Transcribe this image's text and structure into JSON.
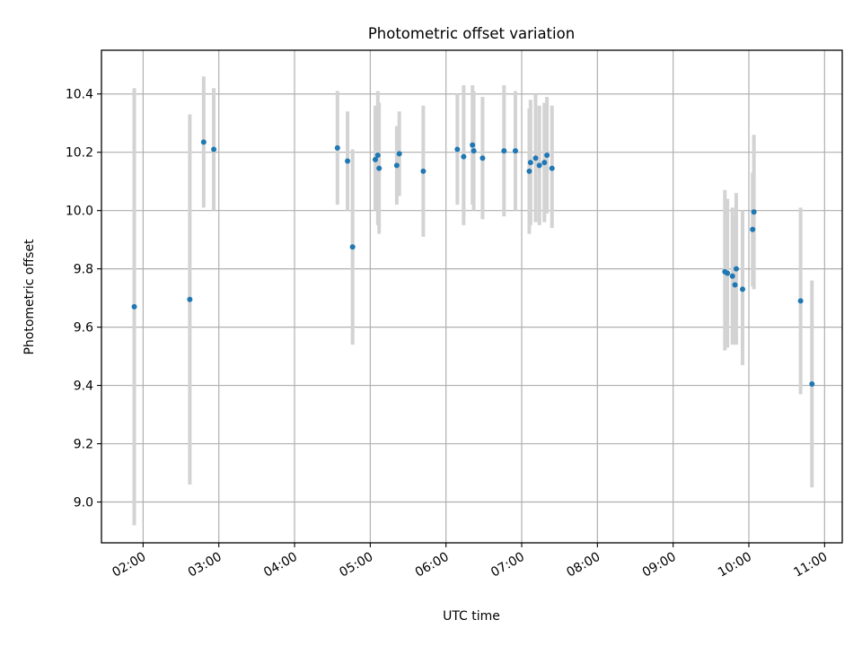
{
  "chart_data": {
    "type": "scatter",
    "title": "Photometric offset variation",
    "xlabel": "UTC time",
    "ylabel": "Photometric offset",
    "xlim": [
      "01:27",
      "11:14"
    ],
    "ylim": [
      8.86,
      10.55
    ],
    "xticks": [
      "02:00",
      "03:00",
      "04:00",
      "05:00",
      "06:00",
      "07:00",
      "08:00",
      "09:00",
      "10:00",
      "11:00"
    ],
    "yticks": [
      "9.0",
      "9.2",
      "9.4",
      "9.6",
      "9.8",
      "10.0",
      "10.2",
      "10.4"
    ],
    "grid": true,
    "marker_color": "#1f77b4",
    "errorbar_color": "#d3d3d3",
    "points": [
      {
        "t": "01:53",
        "y": 9.67,
        "lo": 8.92,
        "hi": 10.42
      },
      {
        "t": "02:37",
        "y": 9.695,
        "lo": 9.06,
        "hi": 10.33
      },
      {
        "t": "02:48",
        "y": 10.235,
        "lo": 10.01,
        "hi": 10.46
      },
      {
        "t": "02:56",
        "y": 10.21,
        "lo": 10.0,
        "hi": 10.42
      },
      {
        "t": "04:34",
        "y": 10.215,
        "lo": 10.02,
        "hi": 10.41
      },
      {
        "t": "04:42",
        "y": 10.17,
        "lo": 10.0,
        "hi": 10.34
      },
      {
        "t": "04:46",
        "y": 9.875,
        "lo": 9.54,
        "hi": 10.21
      },
      {
        "t": "05:04",
        "y": 10.175,
        "lo": 10.0,
        "hi": 10.36
      },
      {
        "t": "05:06",
        "y": 10.19,
        "lo": 9.95,
        "hi": 10.41
      },
      {
        "t": "05:07",
        "y": 10.145,
        "lo": 9.92,
        "hi": 10.37
      },
      {
        "t": "05:21",
        "y": 10.155,
        "lo": 10.02,
        "hi": 10.29
      },
      {
        "t": "05:23",
        "y": 10.195,
        "lo": 10.05,
        "hi": 10.34
      },
      {
        "t": "05:42",
        "y": 10.135,
        "lo": 9.91,
        "hi": 10.36
      },
      {
        "t": "06:09",
        "y": 10.21,
        "lo": 10.02,
        "hi": 10.4
      },
      {
        "t": "06:14",
        "y": 10.185,
        "lo": 9.95,
        "hi": 10.43
      },
      {
        "t": "06:21",
        "y": 10.225,
        "lo": 10.02,
        "hi": 10.43
      },
      {
        "t": "06:22",
        "y": 10.205,
        "lo": 10.0,
        "hi": 10.41
      },
      {
        "t": "06:29",
        "y": 10.18,
        "lo": 9.97,
        "hi": 10.39
      },
      {
        "t": "06:46",
        "y": 10.205,
        "lo": 9.98,
        "hi": 10.43
      },
      {
        "t": "06:55",
        "y": 10.205,
        "lo": 10.0,
        "hi": 10.41
      },
      {
        "t": "07:06",
        "y": 10.135,
        "lo": 9.92,
        "hi": 10.35
      },
      {
        "t": "07:07",
        "y": 10.165,
        "lo": 9.95,
        "hi": 10.38
      },
      {
        "t": "07:11",
        "y": 10.18,
        "lo": 9.96,
        "hi": 10.4
      },
      {
        "t": "07:14",
        "y": 10.155,
        "lo": 9.95,
        "hi": 10.36
      },
      {
        "t": "07:18",
        "y": 10.165,
        "lo": 9.96,
        "hi": 10.37
      },
      {
        "t": "07:20",
        "y": 10.19,
        "lo": 9.99,
        "hi": 10.39
      },
      {
        "t": "07:24",
        "y": 10.145,
        "lo": 9.94,
        "hi": 10.36
      },
      {
        "t": "09:41",
        "y": 9.79,
        "lo": 9.52,
        "hi": 10.07
      },
      {
        "t": "09:43",
        "y": 9.785,
        "lo": 9.53,
        "hi": 10.04
      },
      {
        "t": "09:47",
        "y": 9.775,
        "lo": 9.54,
        "hi": 10.01
      },
      {
        "t": "09:49",
        "y": 9.745,
        "lo": 9.54,
        "hi": 9.98
      },
      {
        "t": "09:50",
        "y": 9.8,
        "lo": 9.54,
        "hi": 10.06
      },
      {
        "t": "09:55",
        "y": 9.73,
        "lo": 9.47,
        "hi": 10.0
      },
      {
        "t": "10:03",
        "y": 9.935,
        "lo": 9.74,
        "hi": 10.13
      },
      {
        "t": "10:04",
        "y": 9.995,
        "lo": 9.73,
        "hi": 10.26
      },
      {
        "t": "10:41",
        "y": 9.69,
        "lo": 9.37,
        "hi": 10.01
      },
      {
        "t": "10:50",
        "y": 9.405,
        "lo": 9.05,
        "hi": 9.76
      }
    ]
  }
}
